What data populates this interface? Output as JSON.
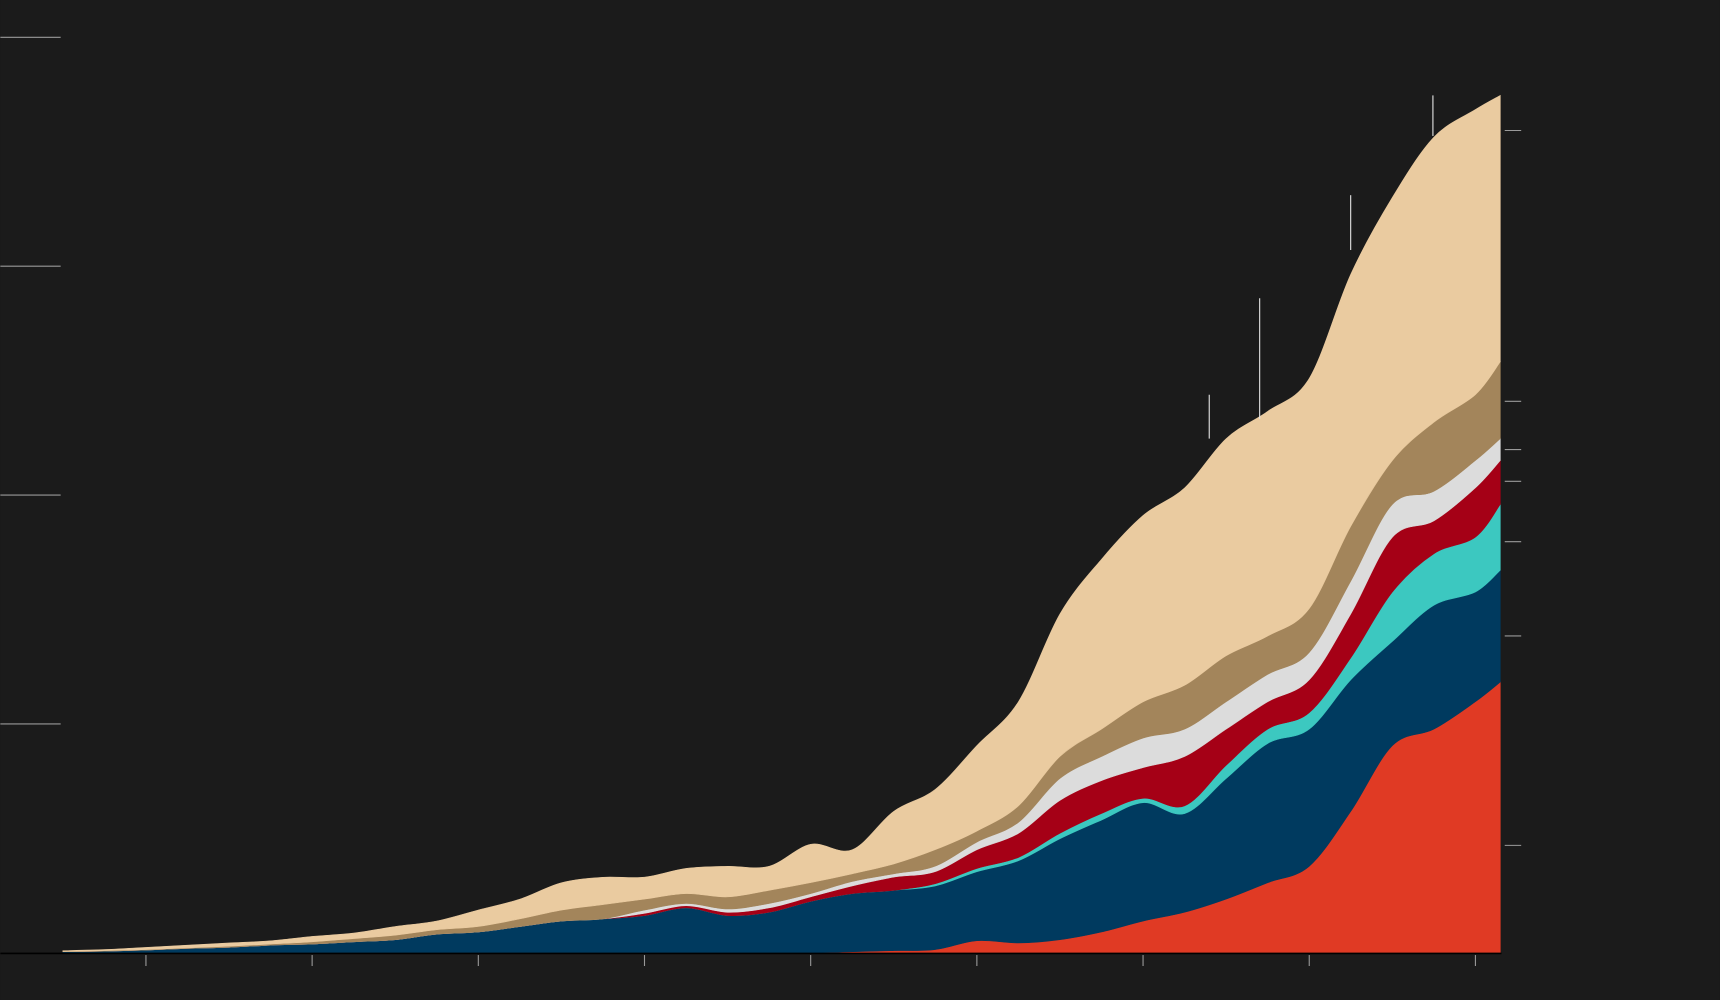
{
  "chart_data": {
    "type": "stacked_area",
    "x": [
      5,
      7.5,
      10,
      12.5,
      15,
      17.5,
      20,
      22.5,
      25,
      27.5,
      30,
      32.5,
      35,
      37.5,
      40,
      42.5,
      45,
      47.5,
      50,
      52.5,
      55,
      57.5,
      60,
      62.5,
      65,
      67.5,
      70,
      72.5,
      75,
      77.5,
      80,
      82.5,
      85,
      87.5,
      90,
      91.5
    ],
    "xlim": [
      5,
      91.5
    ],
    "xticks": [
      10,
      20,
      30,
      40,
      50,
      60,
      70,
      80,
      90
    ],
    "ylim": [
      0,
      100
    ],
    "yticks": [
      25,
      50,
      75,
      100
    ],
    "y2lim": [
      0,
      100
    ],
    "y2ticks": [
      11.74,
      34.61,
      44.91,
      51.5,
      54.97,
      60.24,
      89.82
    ],
    "series": [
      {
        "color": "#e03a24",
        "values": [
          0,
          0,
          0,
          0,
          0,
          0,
          0,
          0,
          0,
          0,
          0,
          0,
          0,
          0,
          0,
          0,
          0,
          0,
          0,
          0.12,
          0.24,
          0.36,
          1.32,
          1.08,
          1.44,
          2.28,
          3.47,
          4.43,
          5.87,
          7.66,
          9.46,
          15.45,
          22.63,
          24.43,
          27.43,
          29.58
        ]
      },
      {
        "color": "#003a5f",
        "values": [
          0.12,
          0.18,
          0.3,
          0.48,
          0.6,
          0.84,
          0.96,
          1.2,
          1.44,
          2.04,
          2.28,
          2.87,
          3.47,
          3.71,
          4.07,
          4.91,
          4.07,
          4.43,
          5.63,
          6.35,
          6.59,
          6.95,
          7.54,
          8.98,
          11.02,
          12.22,
          12.93,
          10.78,
          13.17,
          15.21,
          14.97,
          14.37,
          11.38,
          13.53,
          11.98,
          12.22
        ]
      },
      {
        "color": "#3cc8c0",
        "values": [
          0,
          0,
          0,
          0,
          0,
          0,
          0,
          0,
          0,
          0,
          0,
          0,
          0,
          0,
          0,
          0,
          0,
          0,
          0,
          0,
          0,
          0.24,
          0.36,
          0.36,
          0.6,
          0.72,
          0.48,
          0.84,
          1.44,
          1.56,
          1.8,
          2.4,
          5.39,
          5.63,
          5.99,
          7.19
        ]
      },
      {
        "color": "#a50016",
        "values": [
          0,
          0,
          0,
          0,
          0,
          0,
          0,
          0,
          0,
          0,
          0,
          0,
          0,
          0,
          0.24,
          0.24,
          0.36,
          0.48,
          0.48,
          0.84,
          1.44,
          1.32,
          2.04,
          2.63,
          3.59,
          3.59,
          3.35,
          5.39,
          3.95,
          2.99,
          3.59,
          4.79,
          5.99,
          3.59,
          5.39,
          4.79
        ]
      },
      {
        "color": "#dcdcdc",
        "values": [
          0,
          0,
          0,
          0,
          0,
          0,
          0,
          0,
          0,
          0,
          0,
          0,
          0,
          0,
          0.36,
          0.24,
          0.36,
          0.48,
          0.36,
          0.48,
          0.36,
          0.6,
          0.84,
          1.2,
          2.4,
          2.63,
          3.23,
          2.99,
          2.99,
          2.99,
          2.99,
          3.59,
          3.59,
          3.23,
          2.99,
          2.4
        ]
      },
      {
        "color": "#a3855b",
        "values": [
          0.02,
          0.06,
          0.06,
          0.06,
          0.12,
          0.12,
          0.24,
          0.36,
          0.48,
          0.48,
          0.6,
          0.84,
          1.2,
          1.56,
          1.2,
          1.08,
          1.32,
          1.44,
          1.2,
          0.84,
          1.08,
          1.8,
          1.2,
          1.8,
          2.4,
          2.99,
          3.95,
          4.79,
          5.03,
          4.19,
          4.79,
          5.99,
          4.79,
          7.54,
          7.19,
          8.38
        ]
      },
      {
        "color": "#eacba0",
        "values": [
          0.1,
          0.12,
          0.24,
          0.3,
          0.36,
          0.36,
          0.6,
          0.6,
          0.96,
          0.96,
          1.8,
          2.16,
          2.99,
          2.99,
          2.4,
          2.75,
          3.35,
          2.63,
          4.19,
          2.63,
          5.75,
          6.59,
          9.34,
          11.38,
          15.57,
          18.56,
          20.36,
          21.56,
          23.71,
          24.55,
          25.15,
          27.54,
          28.74,
          31.14,
          31.14,
          29.1
        ]
      }
    ]
  }
}
